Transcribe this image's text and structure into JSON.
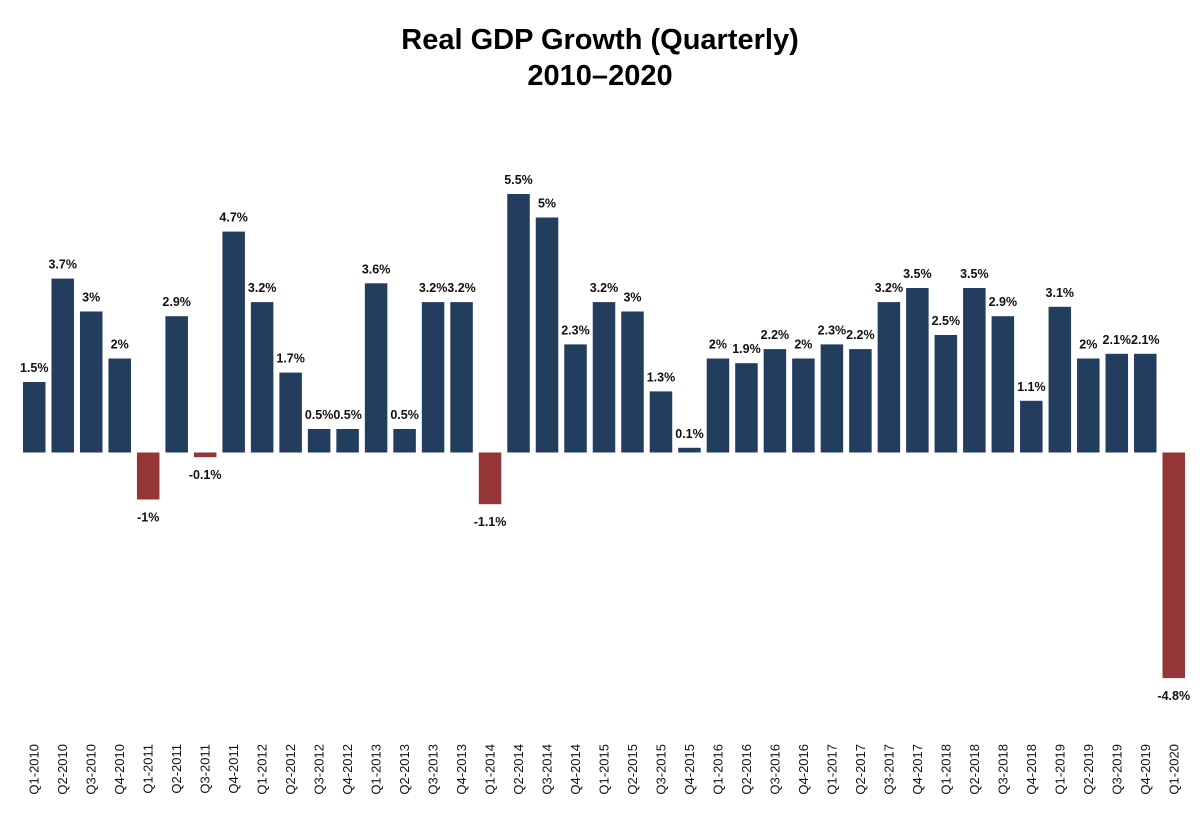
{
  "chart_data": {
    "type": "bar",
    "title_line1": "Real GDP Growth (Quarterly)",
    "title_line2": "2010–2020",
    "xlabel": "",
    "ylabel": "",
    "ylim": [
      -5.8,
      6.6
    ],
    "grid": false,
    "legend": "none",
    "colors": {
      "positive": "#233d5f",
      "negative": "#953535"
    },
    "categories": [
      "Q1-2010",
      "Q2-2010",
      "Q3-2010",
      "Q4-2010",
      "Q1-2011",
      "Q2-2011",
      "Q3-2011",
      "Q4-2011",
      "Q1-2012",
      "Q2-2012",
      "Q3-2012",
      "Q4-2012",
      "Q1-2013",
      "Q2-2013",
      "Q3-2013",
      "Q4-2013",
      "Q1-2014",
      "Q2-2014",
      "Q3-2014",
      "Q4-2014",
      "Q1-2015",
      "Q2-2015",
      "Q3-2015",
      "Q4-2015",
      "Q1-2016",
      "Q2-2016",
      "Q3-2016",
      "Q4-2016",
      "Q1-2017",
      "Q2-2017",
      "Q3-2017",
      "Q4-2017",
      "Q1-2018",
      "Q2-2018",
      "Q3-2018",
      "Q4-2018",
      "Q1-2019",
      "Q2-2019",
      "Q3-2019",
      "Q4-2019",
      "Q1-2020"
    ],
    "values": [
      1.5,
      3.7,
      3,
      2,
      -1,
      2.9,
      -0.1,
      4.7,
      3.2,
      1.7,
      0.5,
      0.5,
      3.6,
      0.5,
      3.2,
      3.2,
      -1.1,
      5.5,
      5,
      2.3,
      3.2,
      3,
      1.3,
      0.1,
      2,
      1.9,
      2.2,
      2,
      2.3,
      2.2,
      3.2,
      3.5,
      2.5,
      3.5,
      2.9,
      1.1,
      3.1,
      2,
      2.1,
      2.1,
      -4.8
    ],
    "labels": [
      "1.5%",
      "3.7%",
      "3%",
      "2%",
      "-1%",
      "2.9%",
      "-0.1%",
      "4.7%",
      "3.2%",
      "1.7%",
      "0.5%",
      "0.5%",
      "3.6%",
      "0.5%",
      "3.2%",
      "3.2%",
      "-1.1%",
      "5.5%",
      "5%",
      "2.3%",
      "3.2%",
      "3%",
      "1.3%",
      "0.1%",
      "2%",
      "1.9%",
      "2.2%",
      "2%",
      "2.3%",
      "2.2%",
      "3.2%",
      "3.5%",
      "2.5%",
      "3.5%",
      "2.9%",
      "1.1%",
      "3.1%",
      "2%",
      "2.1%",
      "2.1%",
      "-4.8%"
    ]
  }
}
